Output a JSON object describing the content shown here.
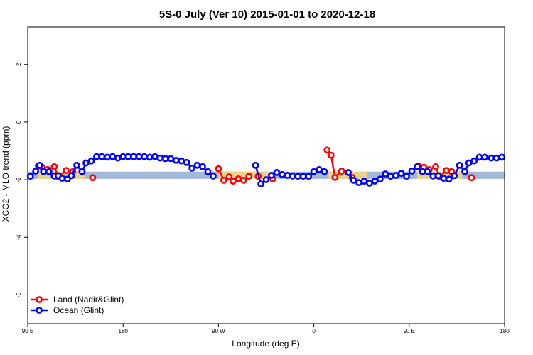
{
  "chart_data": {
    "type": "line",
    "title": "5S-0 July (Ver 10)   2015-01-01 to 2020-12-18",
    "xlabel": "Longitude (deg E)",
    "ylabel": "XCO2 - MLO trend (ppm)",
    "xlim": [
      90,
      450
    ],
    "ylim": [
      -7,
      3.3
    ],
    "x_ticks": [
      {
        "value": 90,
        "label": "90 E"
      },
      {
        "value": 162,
        "label": "180"
      },
      {
        "value": 234,
        "label": "90 W"
      },
      {
        "value": 306,
        "label": "0"
      },
      {
        "value": 378,
        "label": "90 E"
      },
      {
        "value": 450,
        "label": "180"
      }
    ],
    "y_ticks": [
      {
        "value": 2,
        "label": "2"
      },
      {
        "value": 0,
        "label": "0"
      },
      {
        "value": -2,
        "label": "-2"
      },
      {
        "value": -4,
        "label": "-4"
      },
      {
        "value": -6,
        "label": "-6"
      }
    ],
    "reference_band": {
      "y_min": -1.97,
      "y_max": -1.72,
      "color": "#a3b9d8"
    },
    "land_shading": {
      "color": "#f7d87a",
      "spans": [
        {
          "x_min": 98,
          "x_max": 133
        },
        {
          "x_min": 234,
          "x_max": 274
        },
        {
          "x_min": 317,
          "x_max": 346
        },
        {
          "x_min": 384,
          "x_max": 418
        }
      ]
    },
    "series": [
      {
        "name": "Land (Nadir&Glint)",
        "color": "#ff0000",
        "points": [
          [
            98,
            -1.52
          ],
          [
            101,
            -1.57
          ],
          [
            105,
            -1.65
          ],
          [
            110,
            -1.55
          ],
          [
            113,
            -1.9
          ],
          [
            119,
            -1.68
          ],
          [
            124,
            -1.72
          ],
          [
            139,
            -1.93
          ],
          [
            234,
            -1.62
          ],
          [
            238,
            -2.02
          ],
          [
            242,
            -1.9
          ],
          [
            245,
            -2.05
          ],
          [
            249,
            -1.97
          ],
          [
            253,
            -2.02
          ],
          [
            257,
            -1.88
          ],
          [
            264,
            -1.88
          ],
          [
            275,
            -1.97
          ],
          [
            316,
            -0.97
          ],
          [
            319,
            -1.15
          ],
          [
            322,
            -1.92
          ],
          [
            327,
            -1.7
          ],
          [
            335,
            -1.92
          ],
          [
            385,
            -1.52
          ],
          [
            389,
            -1.57
          ],
          [
            393,
            -1.65
          ],
          [
            398,
            -1.55
          ],
          [
            401,
            -1.9
          ],
          [
            406,
            -1.68
          ],
          [
            410,
            -1.72
          ],
          [
            425,
            -1.93
          ]
        ]
      },
      {
        "name": "Ocean (Glint)",
        "color": "#0000ff",
        "points": [
          [
            92,
            -1.88
          ],
          [
            96,
            -1.7
          ],
          [
            99,
            -1.5
          ],
          [
            102,
            -1.72
          ],
          [
            106,
            -1.72
          ],
          [
            110,
            -1.87
          ],
          [
            113,
            -1.86
          ],
          [
            116,
            -1.95
          ],
          [
            120,
            -1.98
          ],
          [
            123,
            -1.86
          ],
          [
            127,
            -1.5
          ],
          [
            131,
            -1.72
          ],
          [
            134,
            -1.42
          ],
          [
            138,
            -1.35
          ],
          [
            142,
            -1.2
          ],
          [
            146,
            -1.2
          ],
          [
            150,
            -1.22
          ],
          [
            154,
            -1.2
          ],
          [
            158,
            -1.25
          ],
          [
            162,
            -1.2
          ],
          [
            166,
            -1.2
          ],
          [
            170,
            -1.2
          ],
          [
            174,
            -1.2
          ],
          [
            178,
            -1.2
          ],
          [
            182,
            -1.22
          ],
          [
            186,
            -1.2
          ],
          [
            190,
            -1.25
          ],
          [
            194,
            -1.27
          ],
          [
            198,
            -1.27
          ],
          [
            202,
            -1.33
          ],
          [
            206,
            -1.35
          ],
          [
            210,
            -1.4
          ],
          [
            214,
            -1.6
          ],
          [
            218,
            -1.5
          ],
          [
            222,
            -1.55
          ],
          [
            226,
            -1.72
          ],
          [
            230,
            -1.87
          ],
          [
            262,
            -1.5
          ],
          [
            266,
            -2.15
          ],
          [
            270,
            -2.0
          ],
          [
            274,
            -1.85
          ],
          [
            278,
            -1.75
          ],
          [
            282,
            -1.82
          ],
          [
            286,
            -1.85
          ],
          [
            290,
            -1.87
          ],
          [
            294,
            -1.88
          ],
          [
            298,
            -1.88
          ],
          [
            302,
            -1.88
          ],
          [
            306,
            -1.72
          ],
          [
            310,
            -1.65
          ],
          [
            314,
            -1.72
          ],
          [
            332,
            -1.75
          ],
          [
            336,
            -2.02
          ],
          [
            340,
            -2.1
          ],
          [
            344,
            -2.05
          ],
          [
            348,
            -2.12
          ],
          [
            352,
            -2.05
          ],
          [
            356,
            -1.98
          ],
          [
            360,
            -1.8
          ],
          [
            364,
            -1.88
          ],
          [
            368,
            -1.85
          ],
          [
            372,
            -1.78
          ],
          [
            376,
            -1.88
          ],
          [
            380,
            -1.7
          ],
          [
            384,
            -1.55
          ],
          [
            388,
            -1.72
          ],
          [
            392,
            -1.72
          ],
          [
            396,
            -1.87
          ],
          [
            400,
            -1.86
          ],
          [
            404,
            -1.95
          ],
          [
            408,
            -1.98
          ],
          [
            412,
            -1.86
          ],
          [
            416,
            -1.5
          ],
          [
            420,
            -1.72
          ],
          [
            423,
            -1.42
          ],
          [
            427,
            -1.35
          ],
          [
            431,
            -1.22
          ],
          [
            435,
            -1.22
          ],
          [
            440,
            -1.25
          ],
          [
            444,
            -1.25
          ],
          [
            448,
            -1.22
          ]
        ]
      }
    ],
    "legend": {
      "position": "bottom-left",
      "entries": [
        "Land (Nadir&Glint)",
        "Ocean (Glint)"
      ]
    }
  }
}
